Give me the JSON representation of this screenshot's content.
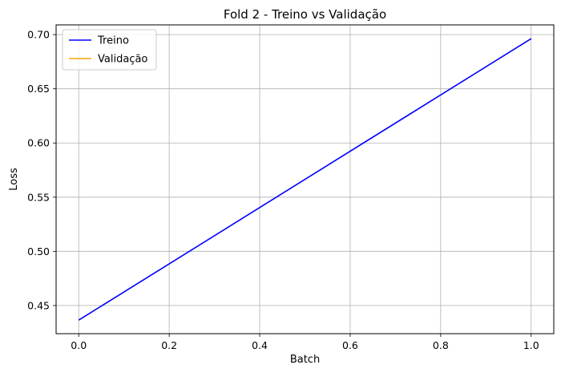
{
  "chart_data": {
    "type": "line",
    "title": "Fold 2 - Treino vs Validação",
    "xlabel": "Batch",
    "ylabel": "Loss",
    "xlim": [
      -0.05,
      1.05
    ],
    "ylim": [
      0.424,
      0.709
    ],
    "xticks": [
      0.0,
      0.2,
      0.4,
      0.6,
      0.8,
      1.0
    ],
    "xtick_labels": [
      "0.0",
      "0.2",
      "0.4",
      "0.6",
      "0.8",
      "1.0"
    ],
    "yticks": [
      0.45,
      0.5,
      0.55,
      0.6,
      0.65,
      0.7
    ],
    "ytick_labels": [
      "0.45",
      "0.50",
      "0.55",
      "0.60",
      "0.65",
      "0.70"
    ],
    "grid": true,
    "legend_position": "top-left",
    "series": [
      {
        "name": "Treino",
        "color": "#0000ff",
        "x": [
          0,
          1
        ],
        "y": [
          0.4365,
          0.6963
        ]
      },
      {
        "name": "Validação",
        "color": "#ffa500",
        "x": [],
        "y": []
      }
    ]
  }
}
